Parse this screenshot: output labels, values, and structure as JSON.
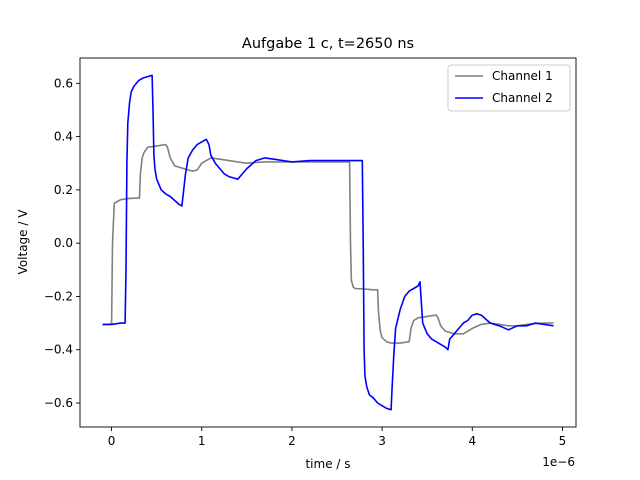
{
  "chart_data": {
    "type": "line",
    "title": "Aufgabe 1 c,  t=2650 ns",
    "xlabel": "time / s",
    "ylabel": "Voltage / V",
    "x_offset_text": "1e−6",
    "xlim": [
      -0.35,
      5.15
    ],
    "ylim": [
      -0.69,
      0.695
    ],
    "x_ticks": [
      0,
      1,
      2,
      3,
      4,
      5
    ],
    "y_ticks": [
      -0.6,
      -0.4,
      -0.2,
      0.0,
      0.2,
      0.4,
      0.6
    ],
    "x_tick_labels": [
      "0",
      "1",
      "2",
      "3",
      "4",
      "5"
    ],
    "y_tick_labels": [
      "−0.6",
      "−0.4",
      "−0.2",
      "0.0",
      "0.2",
      "0.4",
      "0.6"
    ],
    "legend_position": "top-right",
    "series": [
      {
        "name": "Channel 1",
        "color": "#808080",
        "x": [
          -0.1,
          -0.02,
          0.0,
          0.01,
          0.03,
          0.1,
          0.2,
          0.3,
          0.31,
          0.32,
          0.34,
          0.36,
          0.4,
          0.5,
          0.6,
          0.62,
          0.65,
          0.7,
          0.8,
          0.9,
          0.95,
          1.0,
          1.05,
          1.1,
          1.2,
          1.3,
          1.4,
          1.5,
          1.6,
          1.7,
          1.8,
          2.0,
          2.2,
          2.4,
          2.6,
          2.64,
          2.65,
          2.66,
          2.68,
          2.7,
          2.8,
          2.9,
          2.95,
          2.96,
          2.98,
          3.0,
          3.05,
          3.1,
          3.2,
          3.3,
          3.32,
          3.35,
          3.4,
          3.5,
          3.6,
          3.62,
          3.65,
          3.7,
          3.8,
          3.9,
          4.0,
          4.1,
          4.2,
          4.3,
          4.4,
          4.5,
          4.6,
          4.7,
          4.8,
          4.9
        ],
        "y": [
          -0.305,
          -0.305,
          -0.3,
          0.0,
          0.15,
          0.163,
          0.168,
          0.17,
          0.17,
          0.26,
          0.32,
          0.34,
          0.36,
          0.365,
          0.37,
          0.36,
          0.32,
          0.29,
          0.28,
          0.27,
          0.275,
          0.3,
          0.31,
          0.32,
          0.315,
          0.31,
          0.305,
          0.3,
          0.303,
          0.305,
          0.305,
          0.305,
          0.305,
          0.305,
          0.305,
          0.305,
          0.0,
          -0.14,
          -0.165,
          -0.17,
          -0.172,
          -0.175,
          -0.175,
          -0.26,
          -0.33,
          -0.355,
          -0.37,
          -0.375,
          -0.375,
          -0.37,
          -0.32,
          -0.29,
          -0.28,
          -0.275,
          -0.27,
          -0.28,
          -0.31,
          -0.33,
          -0.34,
          -0.34,
          -0.32,
          -0.305,
          -0.3,
          -0.305,
          -0.31,
          -0.31,
          -0.305,
          -0.302,
          -0.3,
          -0.3
        ]
      },
      {
        "name": "Channel 2",
        "color": "#0000ff",
        "x": [
          -0.1,
          0.0,
          0.1,
          0.15,
          0.16,
          0.17,
          0.18,
          0.2,
          0.22,
          0.25,
          0.3,
          0.35,
          0.4,
          0.45,
          0.46,
          0.47,
          0.48,
          0.5,
          0.55,
          0.6,
          0.65,
          0.7,
          0.75,
          0.78,
          0.8,
          0.82,
          0.85,
          0.9,
          0.95,
          1.0,
          1.05,
          1.08,
          1.1,
          1.15,
          1.2,
          1.25,
          1.3,
          1.35,
          1.4,
          1.45,
          1.5,
          1.6,
          1.7,
          1.8,
          1.9,
          2.0,
          2.2,
          2.4,
          2.6,
          2.78,
          2.79,
          2.8,
          2.81,
          2.83,
          2.86,
          2.9,
          2.95,
          3.0,
          3.05,
          3.1,
          3.11,
          3.13,
          3.15,
          3.2,
          3.25,
          3.3,
          3.35,
          3.4,
          3.42,
          3.45,
          3.5,
          3.55,
          3.6,
          3.65,
          3.7,
          3.73,
          3.75,
          3.8,
          3.85,
          3.9,
          3.95,
          4.0,
          4.05,
          4.1,
          4.2,
          4.3,
          4.4,
          4.5,
          4.6,
          4.7,
          4.8,
          4.9
        ],
        "y": [
          -0.305,
          -0.305,
          -0.3,
          -0.3,
          -0.1,
          0.3,
          0.45,
          0.53,
          0.57,
          0.59,
          0.61,
          0.62,
          0.625,
          0.63,
          0.5,
          0.33,
          0.28,
          0.24,
          0.2,
          0.185,
          0.175,
          0.16,
          0.145,
          0.14,
          0.2,
          0.26,
          0.32,
          0.35,
          0.37,
          0.38,
          0.39,
          0.37,
          0.33,
          0.3,
          0.28,
          0.26,
          0.25,
          0.245,
          0.24,
          0.26,
          0.28,
          0.31,
          0.32,
          0.315,
          0.31,
          0.305,
          0.31,
          0.31,
          0.31,
          0.31,
          0.0,
          -0.4,
          -0.5,
          -0.54,
          -0.57,
          -0.58,
          -0.6,
          -0.61,
          -0.62,
          -0.625,
          -0.55,
          -0.42,
          -0.32,
          -0.25,
          -0.2,
          -0.18,
          -0.17,
          -0.16,
          -0.145,
          -0.3,
          -0.34,
          -0.36,
          -0.37,
          -0.38,
          -0.39,
          -0.4,
          -0.36,
          -0.34,
          -0.32,
          -0.3,
          -0.29,
          -0.27,
          -0.265,
          -0.27,
          -0.3,
          -0.31,
          -0.325,
          -0.31,
          -0.31,
          -0.3,
          -0.305,
          -0.31
        ]
      }
    ]
  }
}
